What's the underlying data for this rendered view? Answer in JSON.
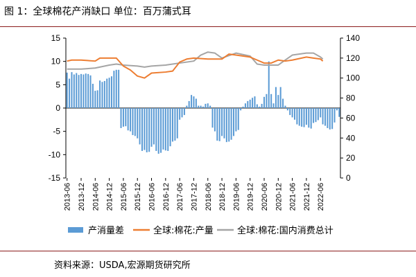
{
  "header": {
    "title": "图 1：全球棉花产消缺口    单位：百万蒲式耳"
  },
  "footer": {
    "source": "资料来源：USDA,宏源期货研究所"
  },
  "colors": {
    "bar": "#5b9bd5",
    "production": "#ed7d31",
    "consumption": "#a5a5a5",
    "rule": "#8b1a1a"
  },
  "chart_data": {
    "type": "bar",
    "title": "",
    "xlabel": "",
    "ylabel": "",
    "left_axis": {
      "ylim": [
        -15,
        15
      ],
      "ticks": [
        -15,
        -10,
        -5,
        0,
        5,
        10,
        15
      ]
    },
    "right_axis": {
      "ylim": [
        0,
        140
      ],
      "ticks": [
        0,
        20,
        40,
        60,
        80,
        100,
        120,
        140
      ]
    },
    "x_tick_labels": [
      "2013-06",
      "2013-12",
      "2014-06",
      "2014-12",
      "2015-06",
      "2015-12",
      "2016-06",
      "2016-12",
      "2017-06",
      "2017-12",
      "2018-06",
      "2018-12",
      "2019-06",
      "2019-12",
      "2020-06",
      "2020-12",
      "2021-06",
      "2021-12",
      "2022-06"
    ],
    "legend": {
      "placement": "bottom"
    },
    "series": [
      {
        "name": "产消量差",
        "kind": "bar",
        "axis": "left",
        "start": "2013-06",
        "step_months": 1,
        "values": [
          7.6,
          6.3,
          7.7,
          7.2,
          7.5,
          7.1,
          7.3,
          7.2,
          7.4,
          7.3,
          7.0,
          5.2,
          3.7,
          3.8,
          5.9,
          5.6,
          5.8,
          6.3,
          6.5,
          6.8,
          8.0,
          8.2,
          8.2,
          -4.3,
          -4.0,
          -3.9,
          -4.8,
          -5.0,
          -5.8,
          -6.0,
          -6.5,
          -7.8,
          -9.2,
          -9.0,
          -9.5,
          -9.4,
          -8.3,
          -7.8,
          -9.2,
          -9.8,
          -9.6,
          -8.9,
          -9.1,
          -9.2,
          -8.2,
          -7.2,
          -7.0,
          -6.5,
          -2.5,
          -2.0,
          -1.5,
          0.5,
          1.5,
          2.8,
          2.5,
          2.0,
          0.5,
          0.5,
          0.3,
          0.9,
          1.0,
          0.5,
          -4.2,
          -5.0,
          -7.0,
          -7.1,
          -6.0,
          -6.5,
          -7.3,
          -7.2,
          -6.8,
          -6.0,
          -5.0,
          -4.7,
          -0.5,
          0.3,
          1.0,
          1.5,
          1.8,
          2.2,
          2.5,
          0.8,
          0.3,
          0.9,
          2.4,
          3.0,
          10.0,
          3.0,
          1.0,
          4.5,
          2.8,
          4.5,
          2.0,
          0.5,
          -0.5,
          -1.5,
          -2.0,
          -2.5,
          -3.5,
          -3.8,
          -4.0,
          -4.1,
          -3.6,
          -4.2,
          -4.4,
          -3.2,
          -3.0,
          -2.6,
          -2.0,
          -3.5,
          -3.8,
          -4.3,
          -4.6,
          -4.5,
          -3.1,
          -0.5,
          -1.9
        ]
      },
      {
        "name": "全球:棉花:产量",
        "kind": "line",
        "axis": "right",
        "points": [
          [
            "2013-06",
            117
          ],
          [
            "2013-08",
            118
          ],
          [
            "2013-12",
            118
          ],
          [
            "2014-06",
            117
          ],
          [
            "2014-08",
            120
          ],
          [
            "2014-12",
            120
          ],
          [
            "2015-03",
            120
          ],
          [
            "2015-06",
            112
          ],
          [
            "2015-09",
            108
          ],
          [
            "2015-12",
            102
          ],
          [
            "2016-03",
            100
          ],
          [
            "2016-06",
            105
          ],
          [
            "2016-12",
            106
          ],
          [
            "2017-03",
            107
          ],
          [
            "2017-06",
            116
          ],
          [
            "2017-09",
            119
          ],
          [
            "2017-12",
            120
          ],
          [
            "2018-06",
            119
          ],
          [
            "2018-12",
            119
          ],
          [
            "2019-03",
            124
          ],
          [
            "2019-06",
            123
          ],
          [
            "2019-12",
            121
          ],
          [
            "2020-03",
            118
          ],
          [
            "2020-06",
            115
          ],
          [
            "2020-09",
            115
          ],
          [
            "2020-12",
            118
          ],
          [
            "2021-03",
            117
          ],
          [
            "2021-06",
            118
          ],
          [
            "2021-12",
            121
          ],
          [
            "2022-03",
            120
          ],
          [
            "2022-06",
            119
          ],
          [
            "2022-07",
            117
          ]
        ]
      },
      {
        "name": "全球:棉花:国内消费总计",
        "kind": "line",
        "axis": "right",
        "points": [
          [
            "2013-06",
            109
          ],
          [
            "2013-12",
            109
          ],
          [
            "2014-06",
            110
          ],
          [
            "2014-12",
            113
          ],
          [
            "2015-03",
            114
          ],
          [
            "2015-06",
            113
          ],
          [
            "2015-12",
            112
          ],
          [
            "2016-03",
            111
          ],
          [
            "2016-06",
            112
          ],
          [
            "2016-12",
            113
          ],
          [
            "2017-06",
            115
          ],
          [
            "2017-12",
            117
          ],
          [
            "2018-03",
            123
          ],
          [
            "2018-06",
            126
          ],
          [
            "2018-09",
            125
          ],
          [
            "2018-12",
            120
          ],
          [
            "2019-06",
            125
          ],
          [
            "2019-12",
            122
          ],
          [
            "2020-03",
            114
          ],
          [
            "2020-06",
            113
          ],
          [
            "2020-12",
            113
          ],
          [
            "2021-03",
            118
          ],
          [
            "2021-06",
            123
          ],
          [
            "2021-12",
            125
          ],
          [
            "2022-03",
            125
          ],
          [
            "2022-06",
            121
          ],
          [
            "2022-07",
            119
          ]
        ]
      }
    ]
  }
}
